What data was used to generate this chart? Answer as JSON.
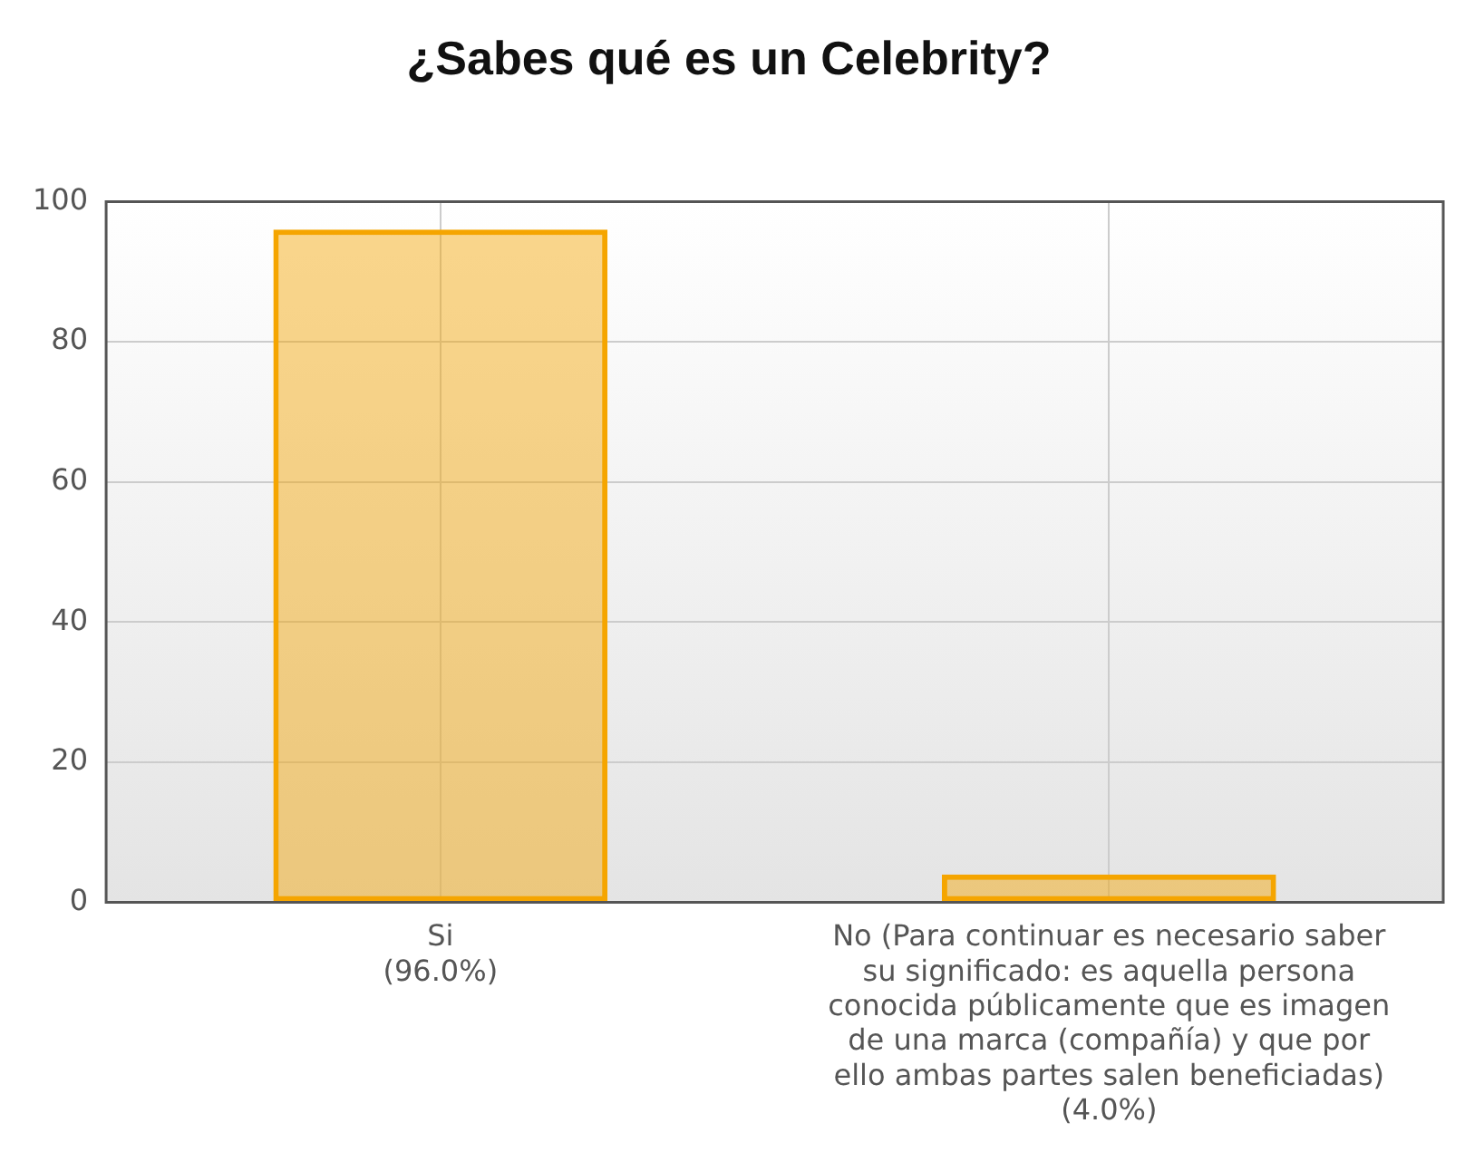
{
  "chart_data": {
    "type": "bar",
    "title": "¿Sabes qué es un Celebrity?",
    "categories": [
      "Si\n(96.0%)",
      "No (Para continuar es necesario saber\nsu significado: es aquella persona\nconocida públicamente que es imagen\nde una marca (compañía) y que por\nello ambas partes salen beneficiadas)\n(4.0%)"
    ],
    "series": [
      {
        "color": "#f5a500",
        "values": [
          96,
          4
        ]
      }
    ],
    "ylim": [
      0,
      100
    ],
    "yticks": [
      0,
      20,
      40,
      60,
      80,
      100
    ],
    "grid": true,
    "legend": false
  }
}
